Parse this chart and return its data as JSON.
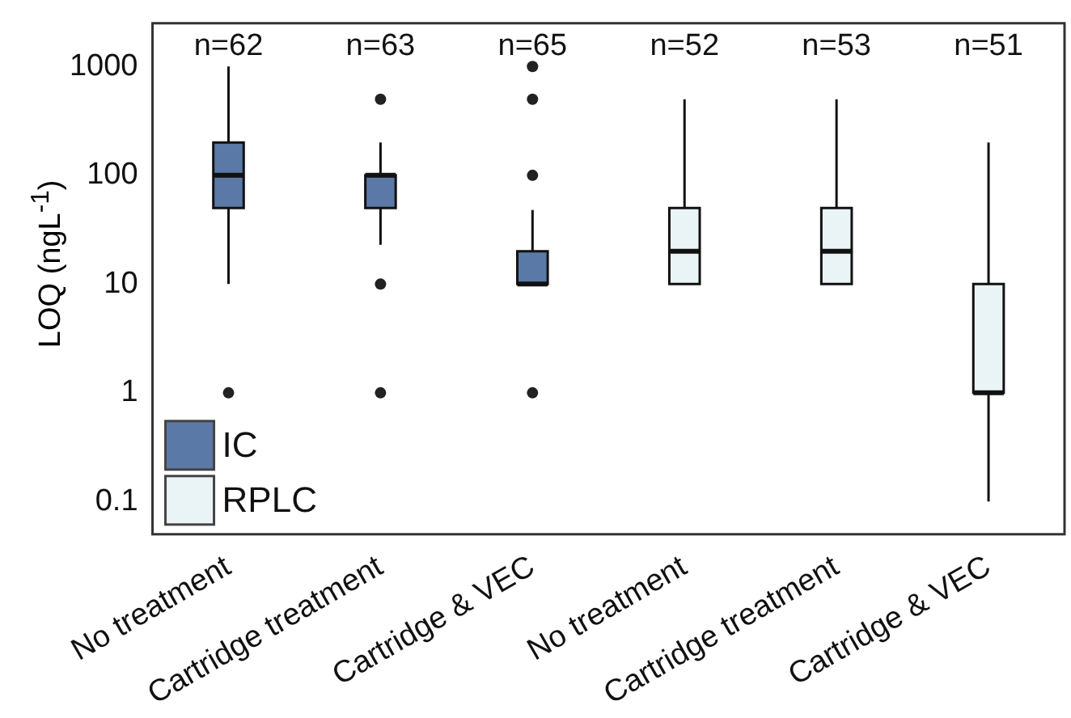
{
  "chart_data": {
    "type": "box",
    "ylabel": "LOQ (ngL$^{-1}$)",
    "log": true,
    "ylim": [
      0.05,
      2500
    ],
    "yticks": [
      0.1,
      1,
      10,
      100,
      1000
    ],
    "grid": false,
    "legend": "bottom left",
    "categories": [
      "No treatment",
      "Cartridge treatment",
      "Cartridge & VEC",
      "No treatment",
      "Cartridge treatment",
      "Cartridge & VEC"
    ],
    "annotations": [
      "n=62",
      "n=63",
      "n=65",
      "n=52",
      "n=53",
      "n=51"
    ],
    "series": [
      {
        "name": "IC",
        "color": "#5b79a6",
        "boxes": [
          {
            "low": 10,
            "q1": 50,
            "median": 100,
            "q3": 200,
            "high": 1000,
            "outliers": [
              1
            ]
          },
          {
            "low": 23,
            "q1": 50,
            "median": 100,
            "q3": 100,
            "high": 200,
            "outliers": [
              500,
              10,
              1
            ]
          },
          {
            "low": 10,
            "q1": 10,
            "median": 10,
            "q3": 20,
            "high": 48,
            "outliers": [
              1000,
              500,
              100,
              1
            ]
          },
          null,
          null,
          null
        ]
      },
      {
        "name": "RPLC",
        "color": "#eaf4f6",
        "boxes": [
          null,
          null,
          null,
          {
            "low": 10,
            "q1": 10,
            "median": 20,
            "q3": 50,
            "high": 500
          },
          {
            "low": 10,
            "q1": 10,
            "median": 20,
            "q3": 50,
            "high": 500
          },
          {
            "low": 0.1,
            "q1": 1,
            "median": 1,
            "q3": 10,
            "high": 200
          }
        ]
      }
    ]
  }
}
